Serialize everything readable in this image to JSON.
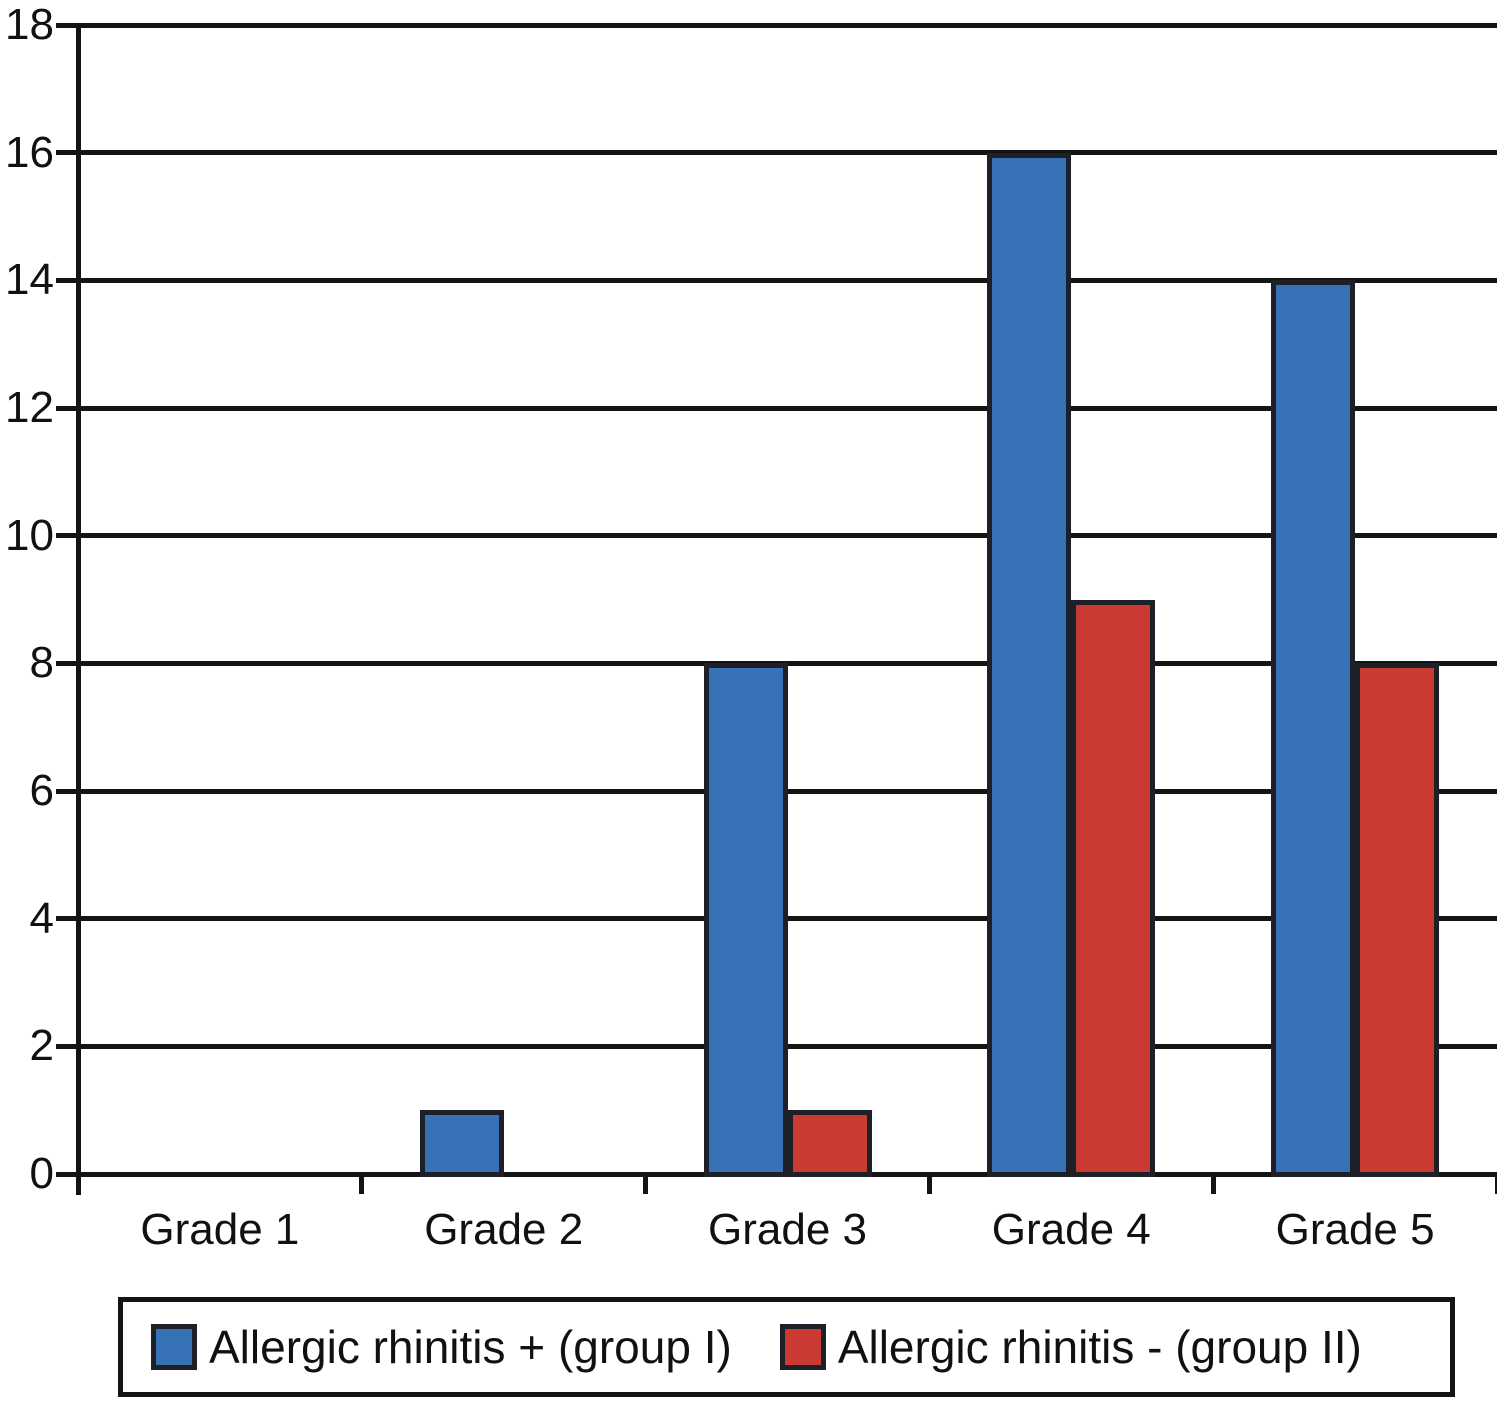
{
  "chart_data": {
    "type": "bar",
    "categories": [
      "Grade 1",
      "Grade 2",
      "Grade 3",
      "Grade 4",
      "Grade 5"
    ],
    "series": [
      {
        "name": "Allergic rhinitis + (group I)",
        "color": "#3772B7",
        "values": [
          0,
          1,
          8,
          16,
          14
        ]
      },
      {
        "name": "Allergic rhinitis - (group II)",
        "color": "#C93A33",
        "values": [
          0,
          0,
          1,
          9,
          8
        ]
      }
    ],
    "title": "",
    "xlabel": "",
    "ylabel": "",
    "ylim": [
      0,
      18
    ],
    "ytick_step": 2,
    "ytick_labels": [
      "0",
      "2",
      "4",
      "6",
      "8",
      "10",
      "12",
      "14",
      "16",
      "18"
    ],
    "grid": true,
    "legend_position": "bottom",
    "line_color": "#141414",
    "bar_border_color": "#1d2026"
  }
}
